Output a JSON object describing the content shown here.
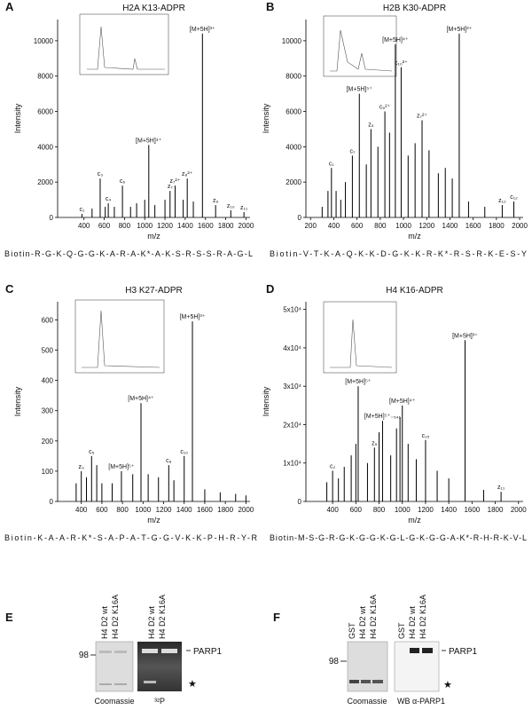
{
  "chart_data": [
    {
      "type": "spectrum",
      "panel": "A",
      "title": "H2A K13-ADPR",
      "x_label": "m/z",
      "y_label": "Intensity",
      "color": "#000000",
      "xlim": [
        140,
        2040
      ],
      "ylim": [
        0,
        11200
      ],
      "xticks": [
        400,
        600,
        800,
        1000,
        1200,
        1400,
        1600,
        1800,
        2000
      ],
      "yticks": [
        0,
        2000,
        4000,
        6000,
        8000,
        10000
      ],
      "x": [
        380,
        480,
        560,
        610,
        640,
        700,
        780,
        860,
        920,
        1000,
        1040,
        1100,
        1200,
        1250,
        1300,
        1380,
        1420,
        1480,
        1570,
        1700,
        1850,
        1980
      ],
      "values": [
        200,
        500,
        2200,
        600,
        800,
        600,
        1800,
        600,
        800,
        1000,
        4100,
        700,
        1000,
        1500,
        1800,
        1000,
        2200,
        900,
        10400,
        700,
        400,
        300
      ],
      "labels": [
        "c₁",
        null,
        "c₃",
        null,
        "c₄",
        null,
        "c₆",
        null,
        null,
        null,
        "[M+5H]⁴⁺",
        null,
        null,
        "z₇",
        "z₇²⁺",
        null,
        "z₈²⁺",
        null,
        "[M+5H]³⁺",
        "z₉",
        "z₁₀",
        "z₁₁"
      ],
      "sequence": "Biotin-R-G-K-Q-G-G-K-A-R-A-K*-A-K-S-R-S-S-R-A-G-L"
    },
    {
      "type": "spectrum",
      "panel": "B",
      "title": "H2B K30-ADPR",
      "x_label": "m/z",
      "y_label": "Intensity",
      "color": "#000000",
      "xlim": [
        160,
        2030
      ],
      "ylim": [
        0,
        11200
      ],
      "xticks": [
        200,
        400,
        600,
        800,
        1000,
        1200,
        1400,
        1600,
        1800,
        2000
      ],
      "yticks": [
        0,
        2000,
        4000,
        6000,
        8000,
        10000
      ],
      "x": [
        300,
        350,
        380,
        420,
        460,
        500,
        560,
        620,
        680,
        720,
        780,
        840,
        880,
        930,
        980,
        1040,
        1100,
        1160,
        1220,
        1300,
        1360,
        1420,
        1480,
        1560,
        1700,
        1850,
        1950
      ],
      "values": [
        600,
        1500,
        2800,
        1500,
        1000,
        2000,
        3500,
        7000,
        3000,
        5000,
        4000,
        6000,
        4800,
        9800,
        8500,
        3500,
        4200,
        5500,
        3800,
        2500,
        2800,
        2200,
        10400,
        900,
        600,
        700,
        900
      ],
      "labels": [
        null,
        null,
        "c₁",
        null,
        null,
        null,
        "c₇",
        "[M+5H]⁵⁺",
        null,
        "z₅",
        null,
        "c₉²⁺",
        null,
        "[M+5H]⁴⁺",
        "c₁₀²⁺",
        null,
        null,
        "z₇²⁺",
        null,
        null,
        null,
        null,
        "[M+5H]³⁺",
        null,
        null,
        "z₁₂",
        "c₁₂"
      ],
      "sequence": "Biotin-V-T-K-A-Q-K-K-D-G-K-K-R-K*-R-S-R-K-E-S-Y"
    },
    {
      "type": "spectrum",
      "panel": "C",
      "title": "H3 K27-ADPR",
      "x_label": "m/z",
      "y_label": "Intensity",
      "color": "#000000",
      "xlim": [
        170,
        2040
      ],
      "ylim": [
        0,
        660
      ],
      "xticks": [
        400,
        600,
        800,
        1000,
        1200,
        1400,
        1600,
        1800,
        2000
      ],
      "yticks": [
        0,
        100,
        200,
        300,
        400,
        500,
        600
      ],
      "x": [
        350,
        400,
        450,
        500,
        550,
        600,
        700,
        790,
        900,
        980,
        1050,
        1150,
        1250,
        1300,
        1400,
        1480,
        1600,
        1750,
        1900,
        2000
      ],
      "values": [
        60,
        100,
        80,
        150,
        120,
        60,
        60,
        100,
        90,
        325,
        90,
        80,
        120,
        70,
        150,
        595,
        40,
        30,
        25,
        20
      ],
      "labels": [
        null,
        "z₃",
        null,
        "c₅",
        null,
        null,
        null,
        "[M+5H]⁵⁺",
        null,
        "[M+5H]⁴⁺",
        null,
        null,
        "c₈",
        null,
        "c₁₀",
        "[M+5H]³⁺",
        null,
        null,
        null,
        null
      ],
      "sequence": "Biotin-K-A-A-R-K*-S-A-P-A-T-G-G-V-K-K-P-H-R-Y-R"
    },
    {
      "type": "spectrum",
      "panel": "D",
      "title": "H4 K16-ADPR",
      "x_label": "m/z",
      "y_label": "Intensity",
      "color": "#000000",
      "xlim": [
        170,
        2040
      ],
      "ylim": [
        0,
        52000
      ],
      "xticks": [
        400,
        600,
        800,
        1000,
        1200,
        1400,
        1600,
        1800,
        2000
      ],
      "yticks": [
        0,
        {
          "value": 10000,
          "label": "1x10⁴"
        },
        {
          "value": 20000,
          "label": "2x10⁴"
        },
        {
          "value": 30000,
          "label": "3x10⁴"
        },
        {
          "value": 40000,
          "label": "4x10⁴"
        },
        {
          "value": 50000,
          "label": "5x10⁴"
        }
      ],
      "x": [
        350,
        400,
        450,
        500,
        560,
        600,
        620,
        700,
        760,
        800,
        830,
        900,
        950,
        980,
        1000,
        1050,
        1120,
        1200,
        1300,
        1400,
        1540,
        1700,
        1850
      ],
      "values": [
        5000,
        8000,
        6000,
        9000,
        12000,
        15000,
        30000,
        10000,
        14000,
        18000,
        21000,
        12000,
        19000,
        22000,
        25000,
        15000,
        11000,
        16000,
        8000,
        6000,
        42000,
        3000,
        2500
      ],
      "labels": [
        null,
        "c₂",
        null,
        null,
        null,
        null,
        "[M+5H]⁵⁺",
        null,
        "z₅",
        null,
        "[M+5H]⁵⁺₋₅₄₁",
        null,
        null,
        null,
        "[M+5H]⁴⁺",
        null,
        null,
        "c₁₅",
        null,
        null,
        "[M+5H]³⁺",
        null,
        "z₁₁"
      ],
      "sequence": "Biotin-M-S-G-R-G-K-G-G-K-G-L-G-K-G-G-A-K*-R-H-R-K-V-L"
    }
  ],
  "gels": [
    {
      "panel": "E",
      "marker": "98",
      "protein": "PARP1",
      "star": "★",
      "blots": [
        {
          "lanes": [
            "H4 D2 wt",
            "H4 D2 K16A"
          ],
          "caption": "Coomassie"
        },
        {
          "lanes": [
            "H4 D2 wt",
            "H4 D2 K16A"
          ],
          "caption": "³²P"
        }
      ]
    },
    {
      "panel": "F",
      "marker": "98",
      "protein": "PARP1",
      "star": "★",
      "blots": [
        {
          "lanes": [
            "GST",
            "H4 D2 wt",
            "H4 D2 K16A"
          ],
          "caption": "Coomassie"
        },
        {
          "lanes": [
            "GST",
            "H4 D2 wt",
            "H4 D2 K16A"
          ],
          "caption": "WB α-PARP1"
        }
      ]
    }
  ]
}
